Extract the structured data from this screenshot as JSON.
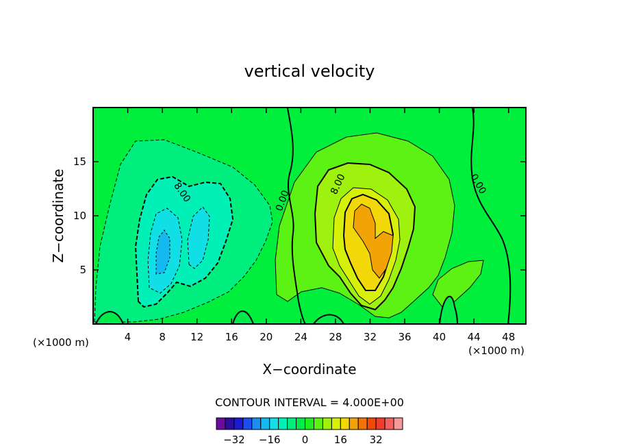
{
  "chart_data": {
    "type": "contour",
    "title": "vertical velocity",
    "xlabel": "X−coordinate",
    "ylabel": "Z−coordinate",
    "x_unit_left": "(×1000 m)",
    "x_unit_right": "(×1000 m)",
    "xlim": [
      0,
      50
    ],
    "ylim": [
      0,
      20
    ],
    "xticks": [
      4,
      8,
      12,
      16,
      20,
      24,
      28,
      32,
      36,
      40,
      44,
      48
    ],
    "yticks": [
      5,
      10,
      15
    ],
    "contour_interval_text": "CONTOUR INTERVAL = 4.000E+00",
    "contour_labels": [
      {
        "text": "8.00",
        "x": 10.0,
        "y": 12.0
      },
      {
        "text": "0.00",
        "x": 22.2,
        "y": 11.3
      },
      {
        "text": "8.00",
        "x": 28.6,
        "y": 12.8
      },
      {
        "text": "0.00",
        "x": 44.2,
        "y": 12.8
      }
    ],
    "regions": [
      {
        "name": "downdraft",
        "center_x": 9.5,
        "center_z": 8,
        "min_value": -20
      },
      {
        "name": "updraft",
        "center_x": 32,
        "center_z": 9,
        "max_value": 20
      }
    ],
    "colorbar": {
      "colors": [
        "#6a0d9e",
        "#2b0ea0",
        "#1a1ad6",
        "#1d4cf0",
        "#1a8ef4",
        "#14b9f0",
        "#10e0e6",
        "#00f0b8",
        "#00ee7e",
        "#00ea4a",
        "#20ee1e",
        "#5cf214",
        "#9ef20e",
        "#d6f00a",
        "#f2d808",
        "#f2a406",
        "#f27404",
        "#f24a04",
        "#f23c2c",
        "#f26060",
        "#f59a9a"
      ],
      "ticks": [
        -32,
        -16,
        0,
        16,
        32
      ],
      "tick_labels": [
        "−32",
        "−16",
        "0",
        "16",
        "32"
      ],
      "min": -40,
      "max": 44
    },
    "background_color": "#00ef3c"
  }
}
